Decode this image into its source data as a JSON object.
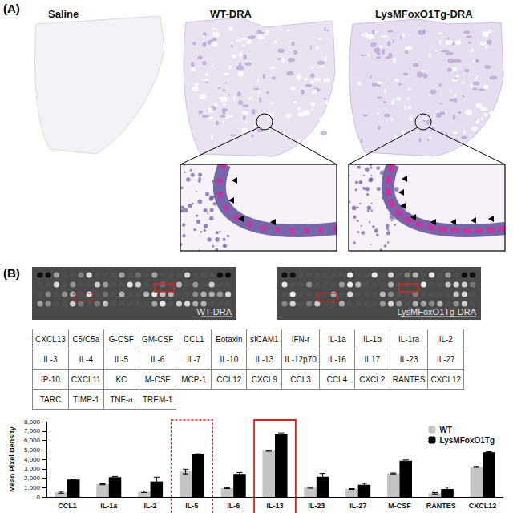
{
  "panel_a": {
    "label": "(A)",
    "images": [
      "Saline",
      "WT-DRA",
      "LysMFoxO1Tg-DRA"
    ]
  },
  "panel_b": {
    "label": "(B)",
    "blots": [
      "WT-DRA",
      "LysMFoxO1Tg-DRA"
    ],
    "table": {
      "rows": [
        [
          "CXCL13",
          "C5/C5a",
          "G-CSF",
          "GM-CSF",
          "CCL1",
          "Eotaxin",
          "sICAM1",
          "IFN-r",
          "IL-1a",
          "IL-1b",
          "IL-1ra",
          "IL-2"
        ],
        [
          "IL-3",
          "IL-4",
          "IL-5",
          "IL-6",
          "IL-7",
          "IL-10",
          "IL-13",
          "IL-12p70",
          "IL-16",
          "IL17",
          "IL-23",
          "IL-27"
        ],
        [
          "IP-10",
          "CXCL11",
          "KC",
          "M-CSF",
          "MCP-1",
          "CCL12",
          "CXCL9",
          "CCL3",
          "CCL4",
          "CXCL2",
          "RANTES",
          "CXCL12"
        ],
        [
          "TARC",
          "TIMP-1",
          "TNF-a",
          "TREM-1"
        ]
      ]
    },
    "highlights": [
      {
        "category": "IL-5",
        "line_style": "dashed"
      },
      {
        "category": "IL-13",
        "line_style": "solid"
      }
    ]
  },
  "chart_data": {
    "type": "bar",
    "ylabel": "Mean Pixel Density",
    "categories": [
      "CCL1",
      "IL-1a",
      "IL-2",
      "IL-5",
      "IL-6",
      "IL-13",
      "IL-23",
      "IL-27",
      "M-CSF",
      "RANTES",
      "CXCL12"
    ],
    "series": [
      {
        "name": "WT",
        "color": "#c4c4c4",
        "values": [
          500,
          1350,
          550,
          2700,
          950,
          4900,
          1000,
          850,
          2500,
          400,
          3200
        ],
        "errors": [
          100,
          50,
          80,
          250,
          50,
          50,
          60,
          40,
          50,
          80,
          50
        ]
      },
      {
        "name": "LysMFoxO1Tg",
        "color": "#000000",
        "values": [
          1850,
          2100,
          1650,
          4550,
          2450,
          6650,
          2150,
          1300,
          3850,
          850,
          4750
        ],
        "errors": [
          50,
          80,
          450,
          30,
          150,
          150,
          350,
          150,
          80,
          200,
          50
        ]
      }
    ],
    "ylim": [
      0,
      8000
    ],
    "yticks": [
      0,
      1000,
      2000,
      3000,
      4000,
      5000,
      6000,
      7000,
      8000
    ],
    "grid": false,
    "legend": "upper right"
  }
}
